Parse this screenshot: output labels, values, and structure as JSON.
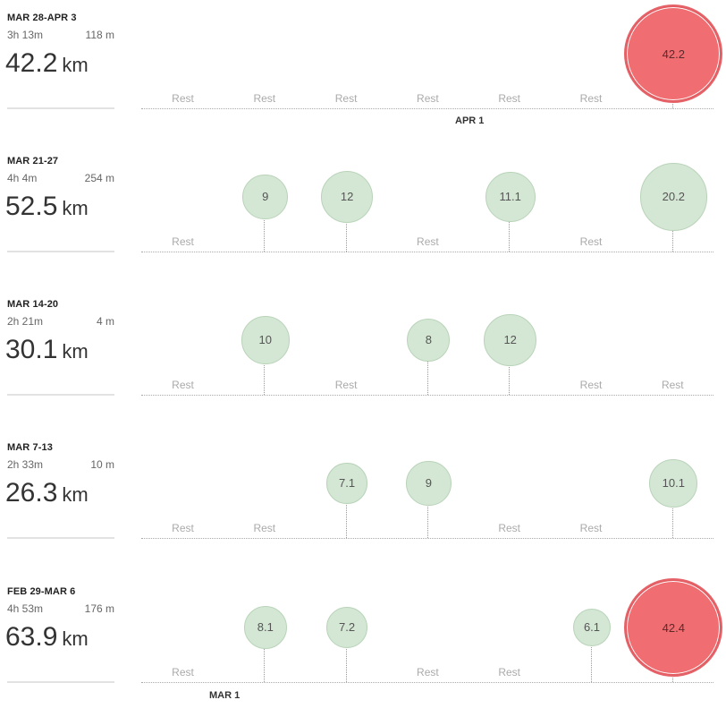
{
  "weeks": [
    {
      "range": "MAR 28-APR 3",
      "time": "3h 13m",
      "elevation": "118 m",
      "distance": "42.2",
      "unit": "km",
      "days": [
        {
          "rest": "Rest"
        },
        {
          "rest": "Rest"
        },
        {
          "rest": "Rest"
        },
        {
          "rest": "Rest"
        },
        {
          "rest": "Rest"
        },
        {
          "rest": "Rest"
        },
        {
          "run": "42.2",
          "kind": "race"
        }
      ],
      "axis_label": "APR 1"
    },
    {
      "range": "MAR 21-27",
      "time": "4h 4m",
      "elevation": "254 m",
      "distance": "52.5",
      "unit": "km",
      "days": [
        {
          "rest": "Rest"
        },
        {
          "run": "9"
        },
        {
          "run": "12"
        },
        {
          "rest": "Rest"
        },
        {
          "run": "11.1"
        },
        {
          "rest": "Rest"
        },
        {
          "run": "20.2"
        }
      ]
    },
    {
      "range": "MAR 14-20",
      "time": "2h 21m",
      "elevation": "4 m",
      "distance": "30.1",
      "unit": "km",
      "days": [
        {
          "rest": "Rest"
        },
        {
          "run": "10"
        },
        {
          "rest": "Rest"
        },
        {
          "run": "8"
        },
        {
          "run": "12"
        },
        {
          "rest": "Rest"
        },
        {
          "rest": "Rest"
        }
      ]
    },
    {
      "range": "MAR 7-13",
      "time": "2h 33m",
      "elevation": "10 m",
      "distance": "26.3",
      "unit": "km",
      "days": [
        {
          "rest": "Rest"
        },
        {
          "rest": "Rest"
        },
        {
          "run": "7.1"
        },
        {
          "run": "9"
        },
        {
          "rest": "Rest"
        },
        {
          "rest": "Rest"
        },
        {
          "run": "10.1"
        }
      ]
    },
    {
      "range": "FEB 29-MAR 6",
      "time": "4h 53m",
      "elevation": "176 m",
      "distance": "63.9",
      "unit": "km",
      "days": [
        {
          "rest": "Rest"
        },
        {
          "run": "8.1"
        },
        {
          "run": "7.2"
        },
        {
          "rest": "Rest"
        },
        {
          "rest": "Rest"
        },
        {
          "run": "6.1"
        },
        {
          "run": "42.4",
          "kind": "race"
        }
      ],
      "axis_label": "MAR 1"
    }
  ],
  "colors": {
    "run_bubble": "#d4e6d4",
    "race_bubble": "#f06e72"
  }
}
